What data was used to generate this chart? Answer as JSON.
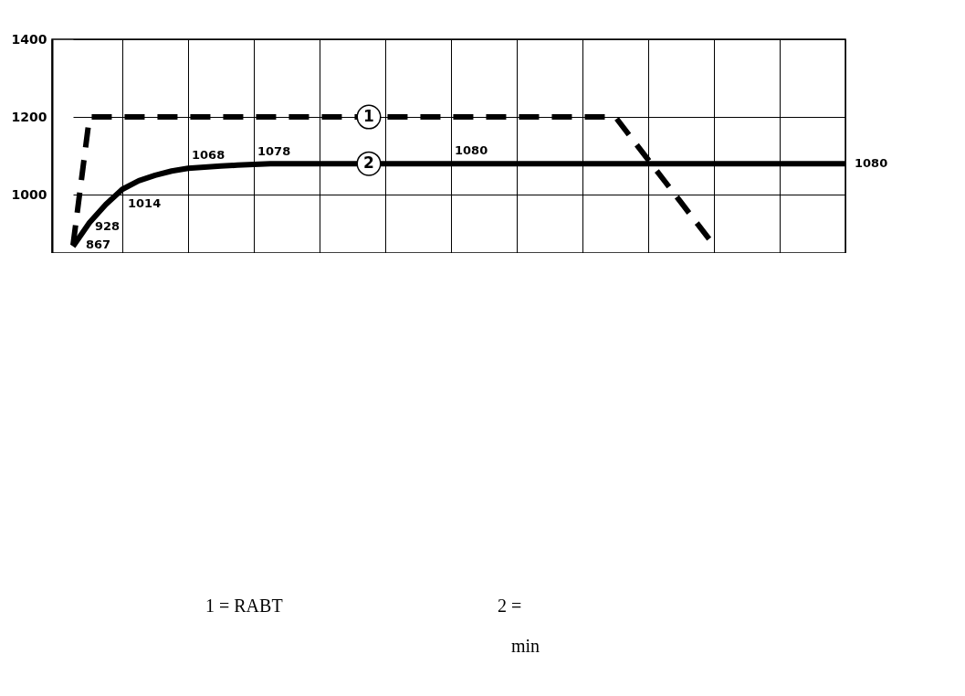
{
  "chart_data": {
    "type": "line",
    "categories": [
      null,
      null,
      null,
      null,
      null,
      null,
      null,
      null,
      null,
      null,
      null,
      null,
      null,
      null,
      null,
      null,
      null,
      null,
      null,
      null,
      null,
      null,
      null,
      null,
      null,
      null,
      null,
      null,
      null,
      null,
      null,
      null,
      null,
      null,
      null,
      null,
      null,
      null,
      null,
      null,
      null,
      null,
      null,
      null,
      null,
      null,
      null,
      null
    ],
    "series": [
      {
        "color": "#000000",
        "line_style": "dashed",
        "values": [
          870,
          1200,
          1200,
          1200,
          1200,
          1200,
          1200,
          1200,
          1200,
          1200,
          1200,
          1200,
          1200,
          1200,
          1200,
          1200,
          1200,
          1200,
          1200,
          1200,
          1200,
          1200,
          1200,
          1200,
          1200,
          1200,
          1200,
          1200,
          1200,
          1200,
          1200,
          1200,
          1200,
          1200,
          1145,
          1090,
          1035,
          980,
          925,
          870,
          null,
          null,
          null,
          null,
          null,
          null,
          null,
          null
        ]
      },
      {
        "color": "#000000",
        "line_style": "solid",
        "values": [
          867,
          928,
          975,
          1014,
          1036,
          1050,
          1061,
          1068,
          1071,
          1074,
          1076,
          1078,
          1080,
          1080,
          1080,
          1080,
          1080,
          1080,
          1080,
          1080,
          1080,
          1080,
          1080,
          1080,
          1080,
          1080,
          1080,
          1080,
          1080,
          1080,
          1080,
          1080,
          1080,
          1080,
          1080,
          1080,
          1080,
          1080,
          1080,
          1080,
          1080,
          1080,
          1080,
          1080,
          1080,
          1080,
          1080,
          1080
        ],
        "value_labels": [
          "867",
          "928",
          null,
          "1014",
          null,
          null,
          null,
          "1068",
          null,
          null,
          null,
          "1078",
          null,
          null,
          null,
          null,
          null,
          null,
          null,
          null,
          null,
          null,
          null,
          "1080",
          null,
          null,
          null,
          null,
          null,
          null,
          null,
          null,
          null,
          null,
          null,
          null,
          null,
          null,
          null,
          null,
          null,
          null,
          null,
          null,
          null,
          null,
          null,
          "1080"
        ]
      }
    ],
    "ylim": [
      850,
      1400
    ],
    "yticks": [
      1000,
      1200,
      1400
    ],
    "grid": true,
    "tick_labels": "y",
    "annotations": [
      {
        "text": "1",
        "y": 1200
      },
      {
        "text": "2",
        "y": 1080
      },
      "1 = RABT",
      "2 =",
      "min"
    ]
  }
}
